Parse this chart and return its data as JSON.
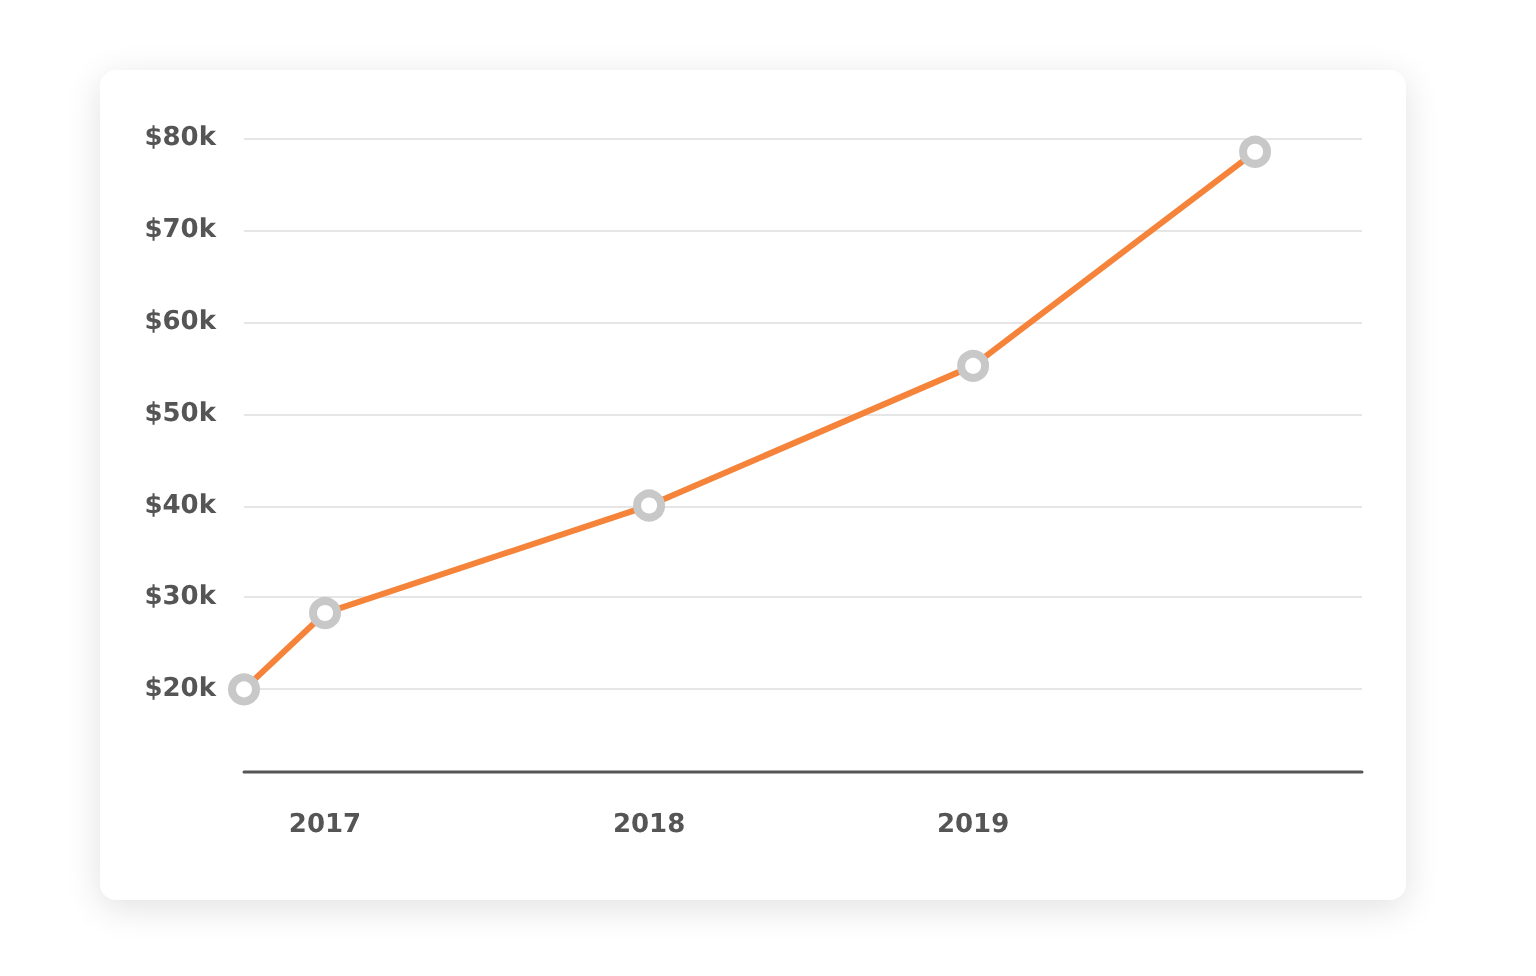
{
  "chart_data": {
    "type": "line",
    "x": [
      2016.75,
      2017,
      2018,
      2019,
      2019.87
    ],
    "series": [
      {
        "color": "#f5843a",
        "values": [
          20,
          28.3,
          40,
          55.2,
          78.5
        ]
      }
    ],
    "xlim": [
      2016.75,
      2020.2
    ],
    "xticks": [
      2017,
      2018,
      2019
    ],
    "ylim": [
      11,
      80
    ],
    "yticks": [
      {
        "value": 20,
        "label": "$20k"
      },
      {
        "value": 30,
        "label": "$30k"
      },
      {
        "value": 40,
        "label": "$40k"
      },
      {
        "value": 50,
        "label": "$50k"
      },
      {
        "value": 60,
        "label": "$60k"
      },
      {
        "value": 70,
        "label": "$70k"
      },
      {
        "value": 80,
        "label": "$80k"
      }
    ],
    "grid": "y",
    "marker": "circle",
    "line_style": "solid"
  }
}
